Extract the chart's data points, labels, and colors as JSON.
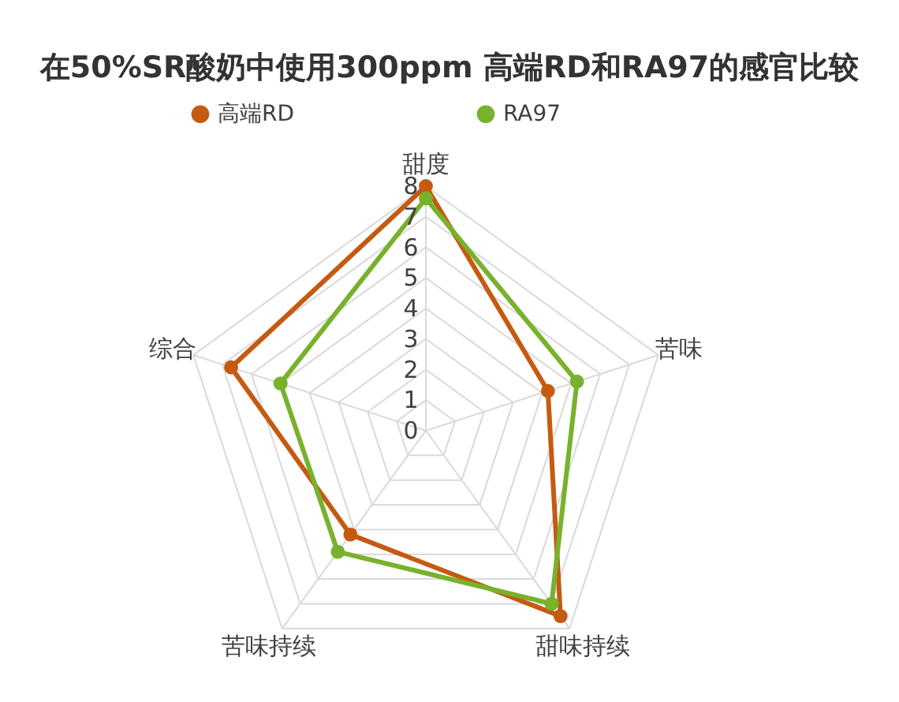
{
  "chart_data": {
    "type": "radar",
    "title": "在50%SR酸奶中使用300ppm 高端RD和RA97的感官比较",
    "categories": [
      "甜度",
      "苦味",
      "甜味持续",
      "苦味持续",
      "综合"
    ],
    "series": [
      {
        "name": "高端RD",
        "color": "#c55a11",
        "values": [
          8,
          4.2,
          7.5,
          4.2,
          6.7
        ]
      },
      {
        "name": "RA97",
        "color": "#78b22d",
        "values": [
          7.6,
          5.2,
          7.0,
          4.9,
          5.0
        ]
      }
    ],
    "ylim": [
      0,
      8
    ],
    "yticks": [
      0,
      1,
      2,
      3,
      4,
      5,
      6,
      7,
      8
    ],
    "grid": true,
    "legend": "top",
    "marker": "circle"
  }
}
